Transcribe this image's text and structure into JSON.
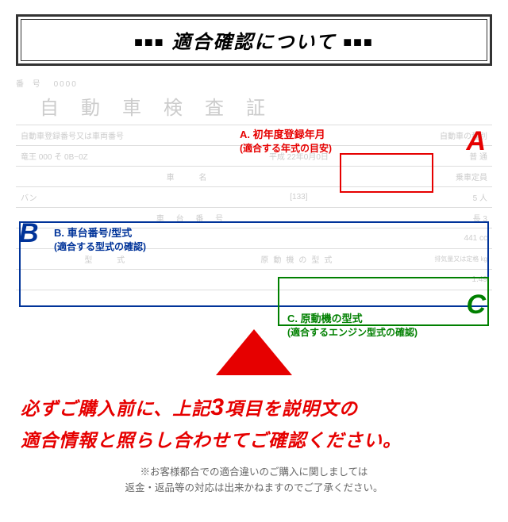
{
  "header": {
    "squares_left": "■■■",
    "title": "適合確認について",
    "squares_right": "■■■"
  },
  "certificate": {
    "serial_label": "番 号",
    "serial_value": "0000",
    "title": "自動車検査証",
    "row1_label": "自動車登録番号又は車両番号",
    "row1_right": "自動車の種別",
    "row2_left": "竜王 000 そ 0B−0Z",
    "row2_mid": "平成  22年0月0日",
    "row2_right": "普 通",
    "row3_label": "車 名",
    "row3_right": "乗車定員",
    "row4_left": "バン",
    "row4_mid": "[133]",
    "row4_right": "5 人",
    "row5_label": "車 台 番 号",
    "row5_right": "長 3",
    "row6_right": "441 cc",
    "row7_label": "型 式",
    "row7_mid": "原動機の型式",
    "row7_right": "排気量又は定格 kg",
    "row8_right": "1.49"
  },
  "annotations": {
    "a": {
      "letter": "A",
      "label": "A. 初年度登録年月",
      "sub": "(適合する年式の目安)",
      "color": "#e60000"
    },
    "b": {
      "letter": "B",
      "label": "B. 車台番号/型式",
      "sub": "(適合する型式の確認)",
      "color": "#003399"
    },
    "c": {
      "letter": "C",
      "label": "C. 原動機の型式",
      "sub": "(適合するエンジン型式の確認)",
      "color": "#008000"
    }
  },
  "warning": {
    "line1a": "必ずご購入前に、上記",
    "line1b": "3",
    "line1c": "項目を説明文の",
    "line2": "適合情報と照らし合わせてご確認ください。"
  },
  "note": {
    "line1": "※お客様都合での適合違いのご購入に関しましては",
    "line2": "返金・返品等の対応は出来かねますのでご了承ください。"
  },
  "colors": {
    "red": "#e60000",
    "blue": "#003399",
    "green": "#008000",
    "border": "#333333",
    "faded": "#cccccc",
    "note": "#666666",
    "bg": "#ffffff"
  }
}
